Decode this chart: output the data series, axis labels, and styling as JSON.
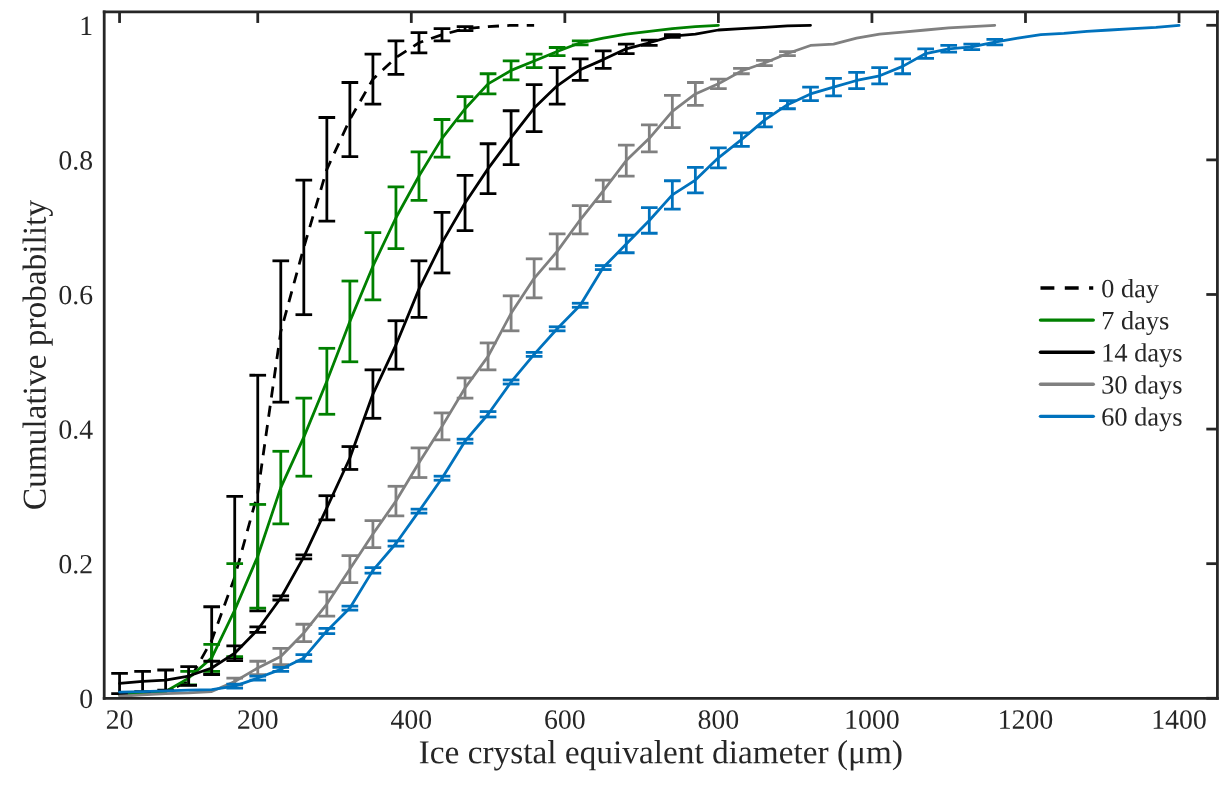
{
  "chart_data": {
    "type": "line",
    "xlabel": "Ice crystal equivalent diameter (μm)",
    "ylabel": "Cumulative probability",
    "xlim": [
      0,
      1450
    ],
    "xticks": [
      20,
      200,
      400,
      600,
      800,
      1000,
      1200,
      1400
    ],
    "ylim": [
      0,
      1.02
    ],
    "yticks": [
      0,
      0.2,
      0.4,
      0.6,
      0.8,
      1
    ],
    "grid": false,
    "legend": "right",
    "series": [
      {
        "name": "0 day",
        "color": "#000000",
        "line_style": "dashed",
        "x": [
          20,
          50,
          80,
          110,
          140,
          170,
          200,
          230,
          260,
          290,
          320,
          350,
          380,
          410,
          440,
          470,
          500,
          530,
          560
        ],
        "values": [
          0.005,
          0.007,
          0.01,
          0.025,
          0.086,
          0.18,
          0.305,
          0.545,
          0.67,
          0.786,
          0.86,
          0.92,
          0.952,
          0.974,
          0.986,
          0.995,
          0.998,
          1.0,
          1.0
        ],
        "errors": [
          null,
          null,
          null,
          null,
          0.05,
          0.12,
          0.175,
          0.105,
          0.1,
          0.077,
          0.055,
          0.037,
          0.025,
          0.015,
          0.009,
          0.003,
          null,
          null,
          null
        ]
      },
      {
        "name": "7 days",
        "color": "#008000",
        "line_style": "solid",
        "x": [
          20,
          50,
          80,
          110,
          140,
          170,
          200,
          230,
          260,
          290,
          320,
          350,
          380,
          410,
          440,
          470,
          500,
          530,
          560,
          590,
          620,
          650,
          680,
          710,
          740,
          770,
          800
        ],
        "values": [
          0.005,
          0.008,
          0.01,
          0.03,
          0.06,
          0.131,
          0.211,
          0.313,
          0.388,
          0.471,
          0.56,
          0.642,
          0.714,
          0.776,
          0.832,
          0.876,
          0.913,
          0.933,
          0.947,
          0.961,
          0.974,
          0.981,
          0.987,
          0.991,
          0.995,
          0.998,
          1.0
        ],
        "errors": [
          null,
          null,
          null,
          0.01,
          0.02,
          0.069,
          0.077,
          0.054,
          0.058,
          0.049,
          0.06,
          0.05,
          0.046,
          0.036,
          0.028,
          0.018,
          0.015,
          0.014,
          0.01,
          0.006,
          0.003,
          null,
          null,
          null,
          null,
          null,
          null
        ]
      },
      {
        "name": "14 days",
        "color": "#000000",
        "line_style": "solid",
        "x": [
          20,
          50,
          80,
          110,
          140,
          170,
          200,
          230,
          260,
          290,
          320,
          350,
          380,
          410,
          440,
          470,
          500,
          530,
          560,
          590,
          620,
          650,
          680,
          710,
          740,
          770,
          800,
          830,
          860,
          890,
          920
        ],
        "values": [
          0.022,
          0.025,
          0.027,
          0.033,
          0.045,
          0.067,
          0.102,
          0.149,
          0.21,
          0.283,
          0.357,
          0.452,
          0.525,
          0.608,
          0.677,
          0.736,
          0.787,
          0.833,
          0.877,
          0.91,
          0.934,
          0.949,
          0.965,
          0.974,
          0.984,
          0.987,
          0.993,
          0.995,
          0.997,
          0.999,
          1.0
        ],
        "errors": [
          0.015,
          0.015,
          0.015,
          0.014,
          0.01,
          0.011,
          0.004,
          0.003,
          0.003,
          0.018,
          0.017,
          0.036,
          0.036,
          0.042,
          0.045,
          0.041,
          0.037,
          0.04,
          0.035,
          0.027,
          0.016,
          0.013,
          0.007,
          0.004,
          0.002,
          null,
          null,
          null,
          null,
          null,
          null
        ]
      },
      {
        "name": "30 days",
        "color": "#808080",
        "line_style": "solid",
        "x": [
          20,
          50,
          80,
          110,
          140,
          170,
          200,
          230,
          260,
          290,
          320,
          350,
          380,
          410,
          440,
          470,
          500,
          530,
          560,
          590,
          620,
          650,
          680,
          710,
          740,
          770,
          800,
          830,
          860,
          890,
          920,
          950,
          980,
          1010,
          1040,
          1070,
          1100,
          1130,
          1160
        ],
        "values": [
          0.003,
          0.005,
          0.007,
          0.008,
          0.01,
          0.025,
          0.045,
          0.062,
          0.097,
          0.14,
          0.192,
          0.244,
          0.293,
          0.35,
          0.404,
          0.461,
          0.508,
          0.572,
          0.624,
          0.664,
          0.711,
          0.754,
          0.799,
          0.832,
          0.872,
          0.898,
          0.913,
          0.932,
          0.944,
          0.958,
          0.97,
          0.972,
          0.981,
          0.987,
          0.99,
          0.993,
          0.996,
          0.998,
          1.0
        ],
        "errors": [
          null,
          null,
          null,
          null,
          null,
          0.005,
          0.01,
          0.012,
          0.013,
          0.018,
          0.02,
          0.02,
          0.022,
          0.022,
          0.02,
          0.015,
          0.02,
          0.026,
          0.029,
          0.026,
          0.021,
          0.016,
          0.023,
          0.02,
          0.024,
          0.017,
          0.007,
          0.004,
          0.004,
          0.003,
          null,
          null,
          null,
          null,
          null,
          null,
          null,
          null,
          null
        ]
      },
      {
        "name": "60 days",
        "color": "#0072bd",
        "line_style": "solid",
        "x": [
          20,
          50,
          80,
          110,
          140,
          170,
          200,
          230,
          260,
          290,
          320,
          350,
          380,
          410,
          440,
          470,
          500,
          530,
          560,
          590,
          620,
          650,
          680,
          710,
          740,
          770,
          800,
          830,
          860,
          890,
          920,
          950,
          980,
          1010,
          1040,
          1070,
          1100,
          1130,
          1160,
          1190,
          1220,
          1250,
          1280,
          1310,
          1340,
          1370,
          1400
        ],
        "values": [
          0.009,
          0.01,
          0.011,
          0.012,
          0.013,
          0.018,
          0.03,
          0.043,
          0.06,
          0.1,
          0.134,
          0.19,
          0.23,
          0.278,
          0.327,
          0.382,
          0.422,
          0.47,
          0.511,
          0.549,
          0.584,
          0.64,
          0.675,
          0.71,
          0.748,
          0.77,
          0.803,
          0.83,
          0.859,
          0.882,
          0.898,
          0.908,
          0.918,
          0.925,
          0.939,
          0.958,
          0.965,
          0.968,
          0.975,
          0.981,
          0.986,
          0.988,
          0.991,
          0.993,
          0.995,
          0.997,
          1.0
        ],
        "errors": [
          null,
          null,
          null,
          null,
          null,
          0.003,
          0.003,
          0.003,
          0.005,
          0.004,
          0.003,
          0.004,
          0.004,
          0.003,
          0.003,
          0.003,
          0.004,
          0.003,
          0.003,
          0.003,
          0.003,
          0.003,
          0.013,
          0.019,
          0.021,
          0.019,
          0.015,
          0.01,
          0.01,
          0.006,
          0.01,
          0.013,
          0.012,
          0.012,
          0.011,
          0.007,
          0.005,
          0.004,
          0.004,
          null,
          null,
          null,
          null,
          null,
          null,
          null,
          null
        ]
      }
    ]
  }
}
